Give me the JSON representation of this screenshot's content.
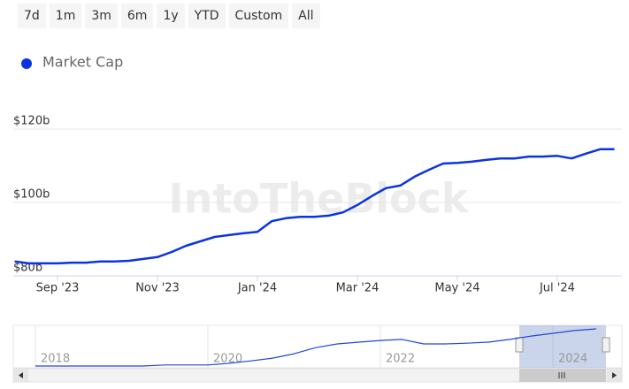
{
  "range_buttons": [
    "7d",
    "1m",
    "3m",
    "6m",
    "1y",
    "YTD",
    "Custom",
    "All"
  ],
  "watermark": "IntoTheBlock",
  "chart_data": [
    {
      "type": "line",
      "categories": [
        null,
        null,
        null,
        "Sep '23",
        null,
        null,
        null,
        null,
        null,
        null,
        "Nov '23",
        null,
        null,
        null,
        null,
        null,
        null,
        "Jan '24",
        null,
        null,
        null,
        null,
        null,
        null,
        "Mar '24",
        null,
        null,
        null,
        null,
        null,
        null,
        "May '24",
        null,
        null,
        null,
        null,
        null,
        null,
        "Jul '24",
        null,
        null,
        null,
        null
      ],
      "series": [
        {
          "name": "Market Cap",
          "color": "#0b34e0",
          "values": [
            83.9,
            83.4,
            83.4,
            83.4,
            83.6,
            83.6,
            83.9,
            83.9,
            84.1,
            84.6,
            85.1,
            86.5,
            88.2,
            89.4,
            90.6,
            91.1,
            91.6,
            92.0,
            94.9,
            95.7,
            96.1,
            96.1,
            96.4,
            97.3,
            99.3,
            101.7,
            103.9,
            104.6,
            107.0,
            108.9,
            110.6,
            110.8,
            111.1,
            111.6,
            112.0,
            112.0,
            112.5,
            112.5,
            112.7,
            112.0,
            113.3,
            114.5,
            114.5
          ]
        }
      ],
      "ylim": [
        80,
        120
      ],
      "yticks": [
        {
          "value": 80,
          "label": "$80b"
        },
        {
          "value": 100,
          "label": "$100b"
        },
        {
          "value": 120,
          "label": "$120b"
        }
      ],
      "grid": true
    },
    {
      "type": "line",
      "categories": [
        "2018",
        null,
        null,
        null,
        null,
        null,
        null,
        null,
        "2020",
        null,
        null,
        null,
        null,
        null,
        null,
        null,
        "2022",
        null,
        null,
        null,
        null,
        null,
        null,
        null,
        "2024",
        null,
        null
      ],
      "series": [
        {
          "name": null,
          "color": "#2247d6",
          "values": [
            3,
            3,
            3,
            3,
            3,
            3,
            6,
            6,
            6,
            11,
            18,
            26,
            39,
            57,
            68,
            73,
            78,
            81,
            68,
            68,
            70,
            73,
            81,
            91,
            99,
            107,
            112
          ]
        }
      ]
    }
  ]
}
